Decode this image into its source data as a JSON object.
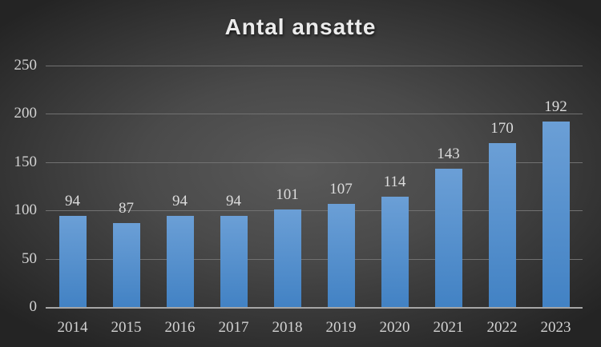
{
  "chart_data": {
    "type": "bar",
    "title": "Antal ansatte",
    "categories": [
      "2014",
      "2015",
      "2016",
      "2017",
      "2018",
      "2019",
      "2020",
      "2021",
      "2022",
      "2023"
    ],
    "values": [
      94,
      87,
      94,
      94,
      101,
      107,
      114,
      143,
      170,
      192
    ],
    "xlabel": "",
    "ylabel": "",
    "ylim": [
      0,
      250
    ],
    "yticks": [
      0,
      50,
      100,
      150,
      200,
      250
    ],
    "grid": true,
    "legend": false,
    "data_labels": true,
    "colors": {
      "bar_top": "#6B9FD6",
      "bar_bottom": "#4282C4",
      "gridline": "#717171",
      "axis_line": "#A6A6A6",
      "tick_text": "#D2D2D2",
      "value_text": "#DCDCDC",
      "title_text": "#ECECEC",
      "bg_center": "#595959",
      "bg_mid": "#4A4A4A",
      "bg_edge": "#242424"
    }
  }
}
